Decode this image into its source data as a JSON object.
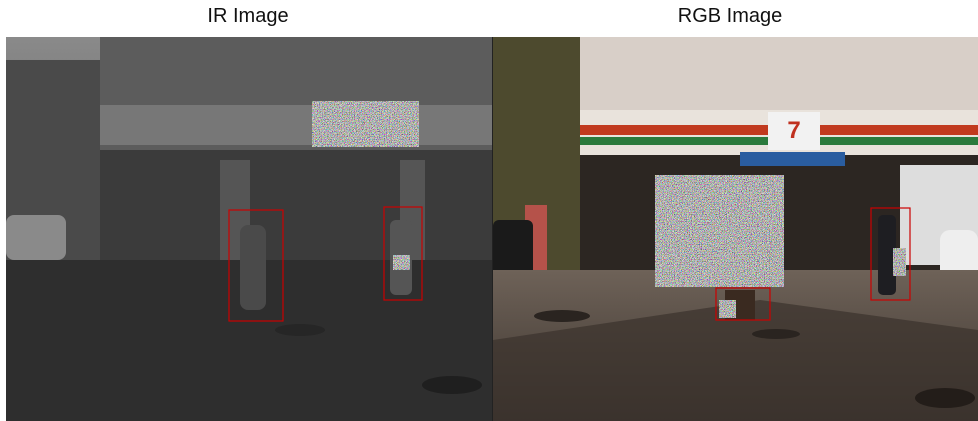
{
  "panels": [
    {
      "title": "IR Image"
    },
    {
      "title": "RGB Image"
    }
  ]
}
